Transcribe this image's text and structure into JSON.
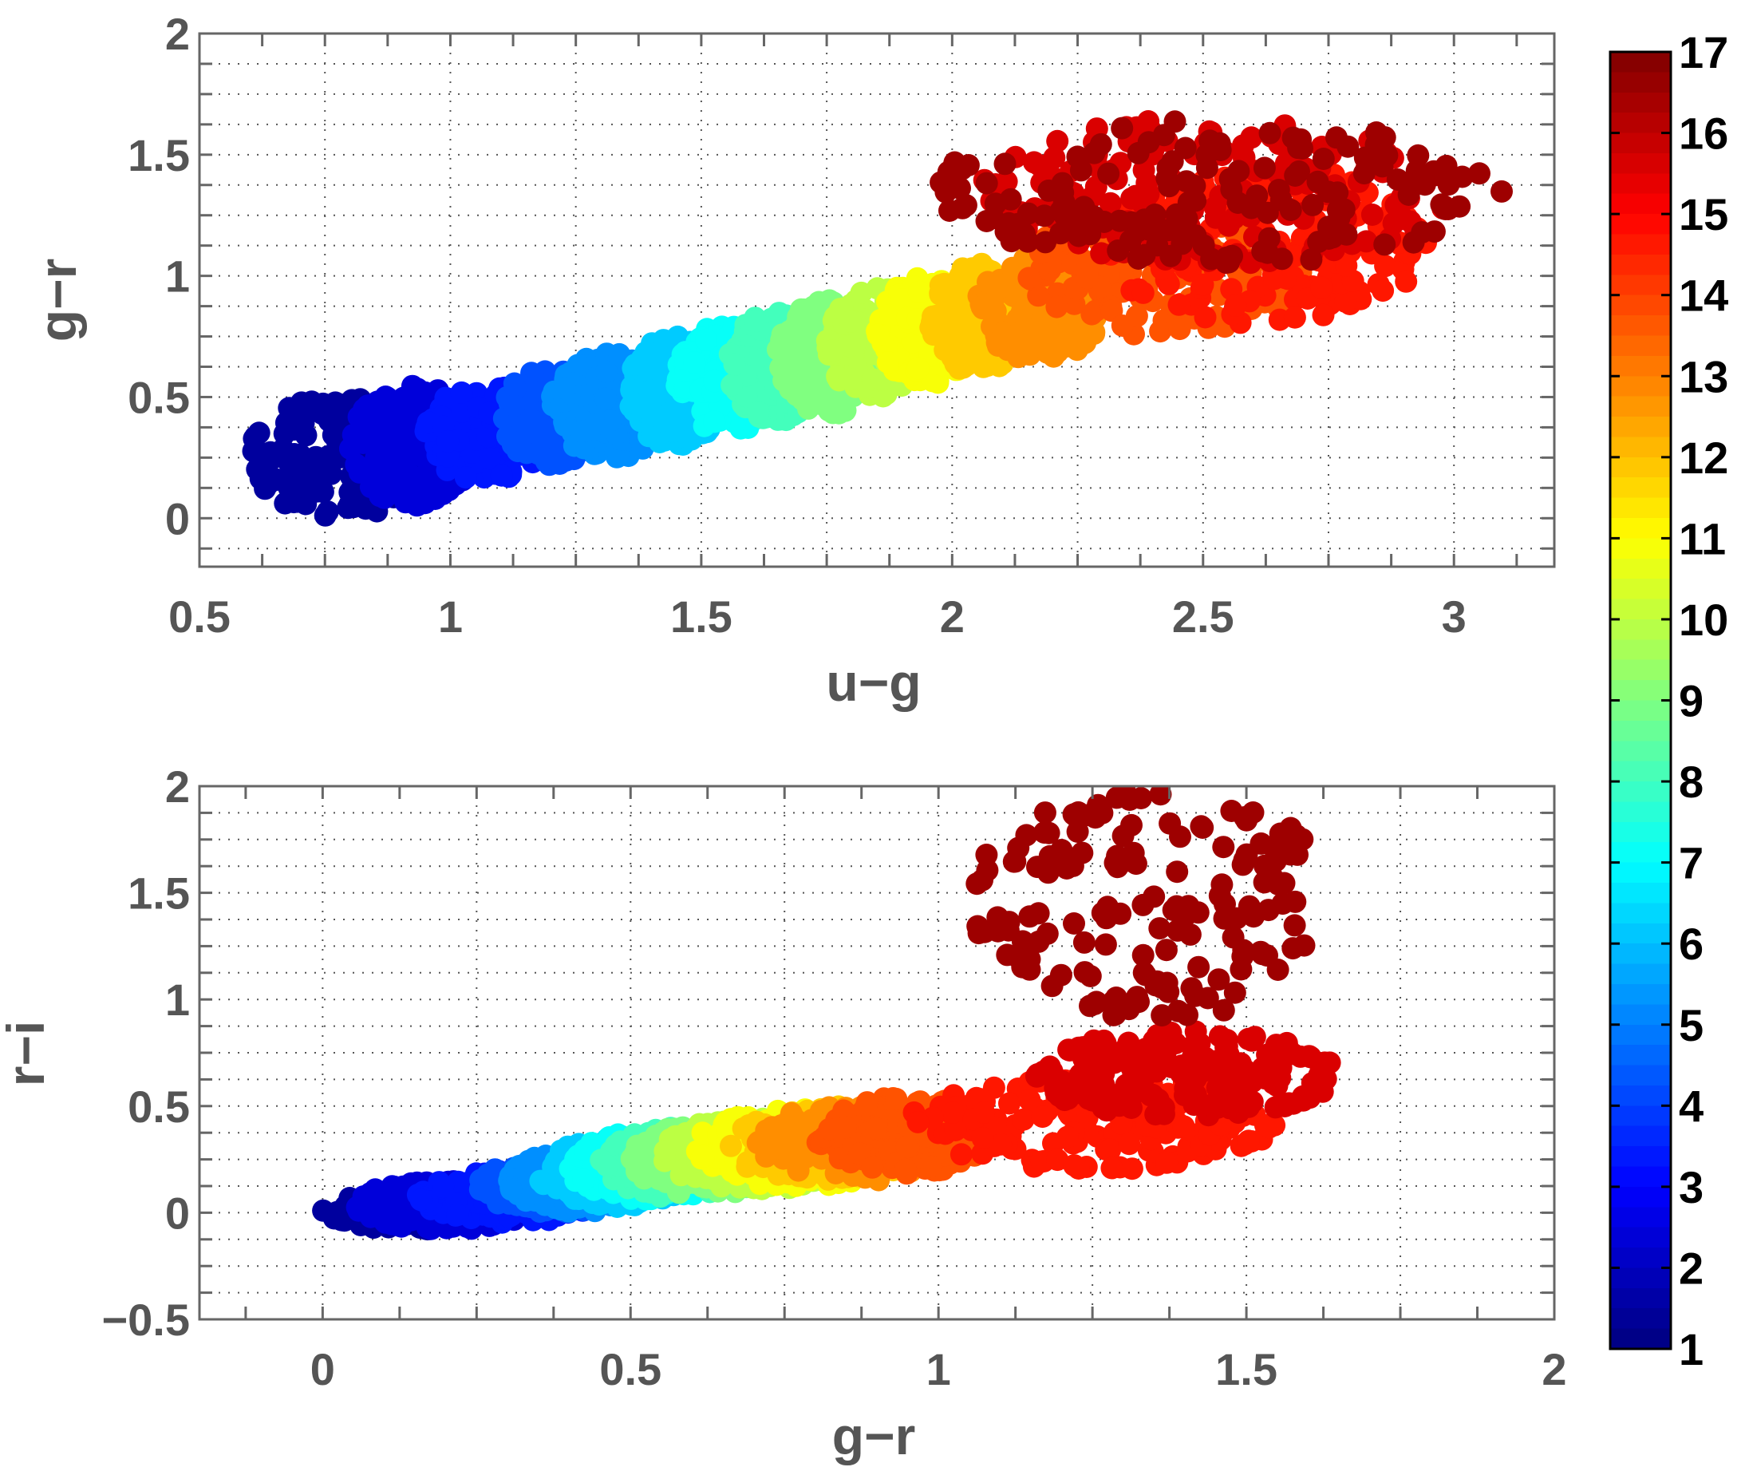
{
  "colors": {
    "axis": "#666666",
    "grid": "#555555",
    "tick_text": "#555555",
    "colorbar_text": "#000000",
    "colormap": "jet"
  },
  "chart_data": [
    {
      "type": "scatter",
      "xlabel": "u−g",
      "ylabel": "g−r",
      "xlim": [
        0.5,
        3.2
      ],
      "ylim": [
        -0.2,
        2.0
      ],
      "xticks": [
        0.5,
        1,
        1.5,
        2,
        2.5,
        3
      ],
      "xtick_labels": [
        "0.5",
        "1",
        "1.5",
        "2",
        "2.5",
        "3"
      ],
      "yticks": [
        0,
        0.5,
        1,
        1.5,
        2
      ],
      "ytick_labels": [
        "0",
        "0.5",
        "1",
        "1.5",
        "2"
      ],
      "grid": true,
      "color_by": "class index 1-17",
      "series": [
        {
          "class": 1,
          "x": [
            0.6,
            0.95
          ],
          "y": [
            0.0,
            0.5
          ]
        },
        {
          "class": 2,
          "x": [
            0.8,
            1.05
          ],
          "y": [
            0.05,
            0.55
          ]
        },
        {
          "class": 3,
          "x": [
            0.95,
            1.2
          ],
          "y": [
            0.15,
            0.55
          ]
        },
        {
          "class": 4,
          "x": [
            1.1,
            1.3
          ],
          "y": [
            0.22,
            0.62
          ]
        },
        {
          "class": 5,
          "x": [
            1.2,
            1.45
          ],
          "y": [
            0.25,
            0.68
          ]
        },
        {
          "class": 6,
          "x": [
            1.35,
            1.55
          ],
          "y": [
            0.3,
            0.75
          ]
        },
        {
          "class": 7,
          "x": [
            1.45,
            1.65
          ],
          "y": [
            0.35,
            0.8
          ]
        },
        {
          "class": 8,
          "x": [
            1.55,
            1.75
          ],
          "y": [
            0.4,
            0.85
          ]
        },
        {
          "class": 9,
          "x": [
            1.65,
            1.85
          ],
          "y": [
            0.42,
            0.9
          ]
        },
        {
          "class": 10,
          "x": [
            1.75,
            1.95
          ],
          "y": [
            0.48,
            0.95
          ]
        },
        {
          "class": 11,
          "x": [
            1.85,
            2.05
          ],
          "y": [
            0.55,
            1.0
          ]
        },
        {
          "class": 12,
          "x": [
            1.95,
            2.15
          ],
          "y": [
            0.6,
            1.05
          ]
        },
        {
          "class": 13,
          "x": [
            2.05,
            2.3
          ],
          "y": [
            0.65,
            1.1
          ]
        },
        {
          "class": 14,
          "x": [
            2.15,
            2.7
          ],
          "y": [
            0.75,
            1.3
          ]
        },
        {
          "class": 15,
          "x": [
            2.3,
            2.95
          ],
          "y": [
            0.8,
            1.45
          ]
        },
        {
          "class": 16,
          "x": [
            2.05,
            3.0
          ],
          "y": [
            1.05,
            1.65
          ]
        },
        {
          "class": 17,
          "x": [
            1.95,
            3.1
          ],
          "y": [
            1.05,
            1.65
          ]
        }
      ]
    },
    {
      "type": "scatter",
      "xlabel": "g−r",
      "ylabel": "r−i",
      "xlim": [
        -0.2,
        2.0
      ],
      "ylim": [
        -0.5,
        2.0
      ],
      "xticks": [
        0,
        0.5,
        1,
        1.5,
        2
      ],
      "xtick_labels": [
        "0",
        "0.5",
        "1",
        "1.5",
        "2"
      ],
      "yticks": [
        -0.5,
        0,
        0.5,
        1,
        1.5,
        2
      ],
      "ytick_labels": [
        "−0.5",
        "0",
        "0.5",
        "1",
        "1.5",
        "2"
      ],
      "grid": true,
      "color_by": "class index 1-17",
      "series": [
        {
          "class": 1,
          "x": [
            0.0,
            0.3
          ],
          "y": [
            -0.08,
            0.1
          ]
        },
        {
          "class": 2,
          "x": [
            0.05,
            0.35
          ],
          "y": [
            -0.08,
            0.15
          ]
        },
        {
          "class": 3,
          "x": [
            0.15,
            0.45
          ],
          "y": [
            -0.05,
            0.2
          ]
        },
        {
          "class": 4,
          "x": [
            0.25,
            0.5
          ],
          "y": [
            0.0,
            0.25
          ]
        },
        {
          "class": 5,
          "x": [
            0.3,
            0.55
          ],
          "y": [
            0.0,
            0.3
          ]
        },
        {
          "class": 6,
          "x": [
            0.35,
            0.6
          ],
          "y": [
            0.02,
            0.35
          ]
        },
        {
          "class": 7,
          "x": [
            0.4,
            0.65
          ],
          "y": [
            0.05,
            0.38
          ]
        },
        {
          "class": 8,
          "x": [
            0.45,
            0.7
          ],
          "y": [
            0.07,
            0.4
          ]
        },
        {
          "class": 9,
          "x": [
            0.5,
            0.75
          ],
          "y": [
            0.08,
            0.42
          ]
        },
        {
          "class": 10,
          "x": [
            0.55,
            0.85
          ],
          "y": [
            0.1,
            0.45
          ]
        },
        {
          "class": 11,
          "x": [
            0.6,
            0.95
          ],
          "y": [
            0.12,
            0.5
          ]
        },
        {
          "class": 12,
          "x": [
            0.65,
            1.0
          ],
          "y": [
            0.15,
            0.5
          ]
        },
        {
          "class": 13,
          "x": [
            0.7,
            1.05
          ],
          "y": [
            0.15,
            0.52
          ]
        },
        {
          "class": 14,
          "x": [
            0.8,
            1.1
          ],
          "y": [
            0.18,
            0.55
          ]
        },
        {
          "class": 15,
          "x": [
            0.95,
            1.55
          ],
          "y": [
            0.2,
            0.65
          ]
        },
        {
          "class": 16,
          "x": [
            1.15,
            1.65
          ],
          "y": [
            0.45,
            0.85
          ]
        },
        {
          "class": 17,
          "x": [
            1.05,
            1.65
          ],
          "y": [
            0.9,
            2.0
          ]
        }
      ]
    }
  ],
  "colorbar": {
    "min": 1,
    "max": 17,
    "ticks": [
      "1",
      "2",
      "3",
      "4",
      "5",
      "6",
      "7",
      "8",
      "9",
      "10",
      "11",
      "12",
      "13",
      "14",
      "15",
      "16",
      "17"
    ]
  }
}
